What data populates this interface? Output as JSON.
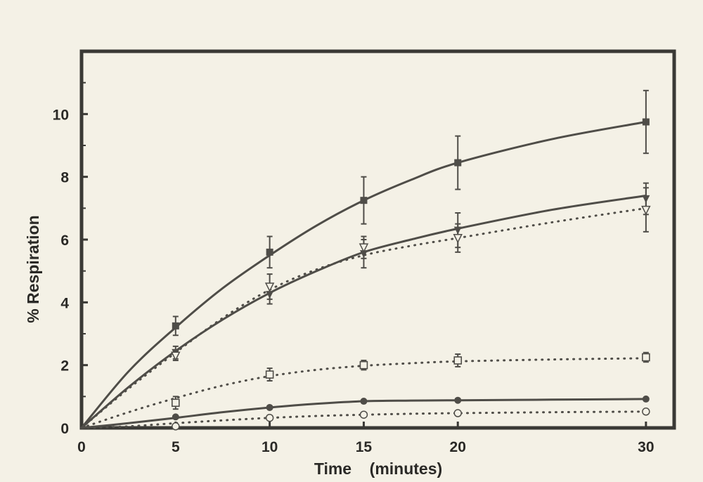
{
  "chart_data": {
    "type": "line",
    "title": "",
    "xlabel": "Time    (minutes)",
    "ylabel": "% Respiration",
    "xlim": [
      0,
      31.5
    ],
    "ylim": [
      0,
      12
    ],
    "xticks": [
      0,
      5,
      10,
      15,
      20,
      30
    ],
    "yticks": [
      0,
      2,
      4,
      6,
      8,
      10
    ],
    "grid": false,
    "series": [
      {
        "marker": "filled-square",
        "line": "solid",
        "x": [
          0,
          5,
          10,
          15,
          20,
          30
        ],
        "y": [
          0,
          3.25,
          5.6,
          7.25,
          8.45,
          9.75
        ],
        "err": [
          0,
          0.3,
          0.5,
          0.75,
          0.85,
          1.0
        ],
        "curve": [
          [
            0,
            0
          ],
          [
            2.5,
            1.8
          ],
          [
            5,
            3.2
          ],
          [
            7.5,
            4.45
          ],
          [
            10,
            5.5
          ],
          [
            12.5,
            6.45
          ],
          [
            15,
            7.25
          ],
          [
            17.5,
            7.9
          ],
          [
            20,
            8.45
          ],
          [
            25,
            9.2
          ],
          [
            30,
            9.75
          ]
        ]
      },
      {
        "marker": "filled-triangle",
        "line": "solid",
        "x": [
          0,
          5,
          10,
          15,
          20,
          30
        ],
        "y": [
          0,
          2.4,
          4.25,
          5.55,
          6.3,
          7.3
        ],
        "err": [
          0,
          0.2,
          0.3,
          0.45,
          0.55,
          0.5
        ],
        "curve": [
          [
            0,
            0
          ],
          [
            2.5,
            1.3
          ],
          [
            5,
            2.45
          ],
          [
            7.5,
            3.45
          ],
          [
            10,
            4.3
          ],
          [
            12.5,
            5.0
          ],
          [
            15,
            5.6
          ],
          [
            17.5,
            6.0
          ],
          [
            20,
            6.35
          ],
          [
            25,
            6.95
          ],
          [
            30,
            7.4
          ]
        ]
      },
      {
        "marker": "open-triangle",
        "line": "dotted",
        "x": [
          0,
          5,
          10,
          15,
          20,
          30
        ],
        "y": [
          0,
          2.3,
          4.5,
          5.75,
          6.05,
          6.95
        ],
        "err": [
          0,
          0.15,
          0.4,
          0.35,
          0.45,
          0.7
        ],
        "curve": [
          [
            0,
            0
          ],
          [
            2.5,
            1.25
          ],
          [
            5,
            2.4
          ],
          [
            7.5,
            3.5
          ],
          [
            10,
            4.4
          ],
          [
            12.5,
            5.05
          ],
          [
            15,
            5.5
          ],
          [
            17.5,
            5.8
          ],
          [
            20,
            6.05
          ],
          [
            25,
            6.55
          ],
          [
            30,
            7.0
          ]
        ]
      },
      {
        "marker": "open-square",
        "line": "dotted",
        "x": [
          0,
          5,
          10,
          15,
          20,
          30
        ],
        "y": [
          0,
          0.8,
          1.7,
          2.0,
          2.15,
          2.25
        ],
        "err": [
          0,
          0.2,
          0.2,
          0.15,
          0.2,
          0.15
        ],
        "curve": [
          [
            0,
            0
          ],
          [
            2.5,
            0.5
          ],
          [
            5,
            0.95
          ],
          [
            7.5,
            1.35
          ],
          [
            10,
            1.65
          ],
          [
            12.5,
            1.85
          ],
          [
            15,
            1.98
          ],
          [
            17.5,
            2.06
          ],
          [
            20,
            2.12
          ],
          [
            25,
            2.18
          ],
          [
            30,
            2.22
          ]
        ]
      },
      {
        "marker": "filled-circle",
        "line": "solid",
        "x": [
          0,
          5,
          10,
          15,
          20,
          30
        ],
        "y": [
          0,
          0.35,
          0.65,
          0.85,
          0.88,
          0.92
        ],
        "err": [
          0,
          0,
          0,
          0,
          0,
          0
        ],
        "curve": [
          [
            0,
            0
          ],
          [
            2.5,
            0.15
          ],
          [
            5,
            0.32
          ],
          [
            7.5,
            0.5
          ],
          [
            10,
            0.65
          ],
          [
            12.5,
            0.77
          ],
          [
            15,
            0.85
          ],
          [
            17.5,
            0.87
          ],
          [
            20,
            0.88
          ],
          [
            25,
            0.9
          ],
          [
            30,
            0.92
          ]
        ]
      },
      {
        "marker": "open-circle",
        "line": "dotted",
        "x": [
          0,
          5,
          10,
          15,
          20,
          30
        ],
        "y": [
          0,
          0.05,
          0.32,
          0.42,
          0.47,
          0.52
        ],
        "err": [
          0,
          0,
          0,
          0,
          0,
          0
        ],
        "curve": [
          [
            0,
            0
          ],
          [
            2.5,
            0.05
          ],
          [
            5,
            0.15
          ],
          [
            7.5,
            0.24
          ],
          [
            10,
            0.32
          ],
          [
            12.5,
            0.38
          ],
          [
            15,
            0.42
          ],
          [
            17.5,
            0.45
          ],
          [
            20,
            0.47
          ],
          [
            25,
            0.5
          ],
          [
            30,
            0.52
          ]
        ]
      }
    ]
  },
  "style": {
    "background": "#f4f1e6",
    "frame_color": "#3a3935",
    "ink": "#4f4d48"
  }
}
